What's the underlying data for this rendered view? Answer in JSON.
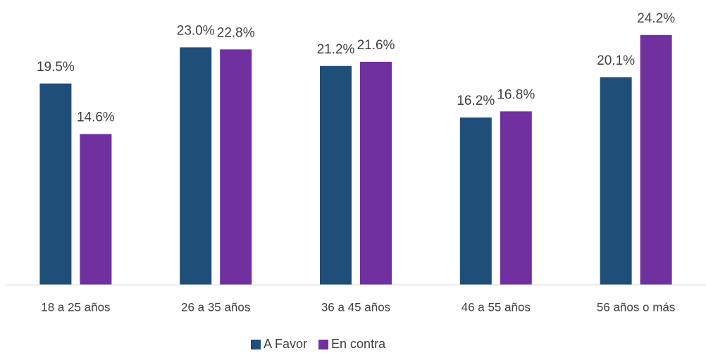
{
  "chart_data": {
    "type": "bar",
    "categories": [
      "18 a 25 años",
      "26 a 35 años",
      "36 a 45 años",
      "46 a 55 años",
      "56 años o más"
    ],
    "series": [
      {
        "name": "A Favor",
        "color": "#1f4e79",
        "values": [
          19.5,
          23.0,
          21.2,
          16.2,
          20.1
        ],
        "value_labels": [
          "19.5%",
          "23.0%",
          "21.2%",
          "16.2%",
          "20.1%"
        ]
      },
      {
        "name": "En contra",
        "color": "#7030a0",
        "values": [
          14.6,
          22.8,
          21.6,
          16.8,
          24.2
        ],
        "value_labels": [
          "14.6%",
          "22.8%",
          "21.6%",
          "16.8%",
          "24.2%"
        ]
      }
    ],
    "ylim": [
      0,
      25
    ],
    "legend": "bottom"
  }
}
